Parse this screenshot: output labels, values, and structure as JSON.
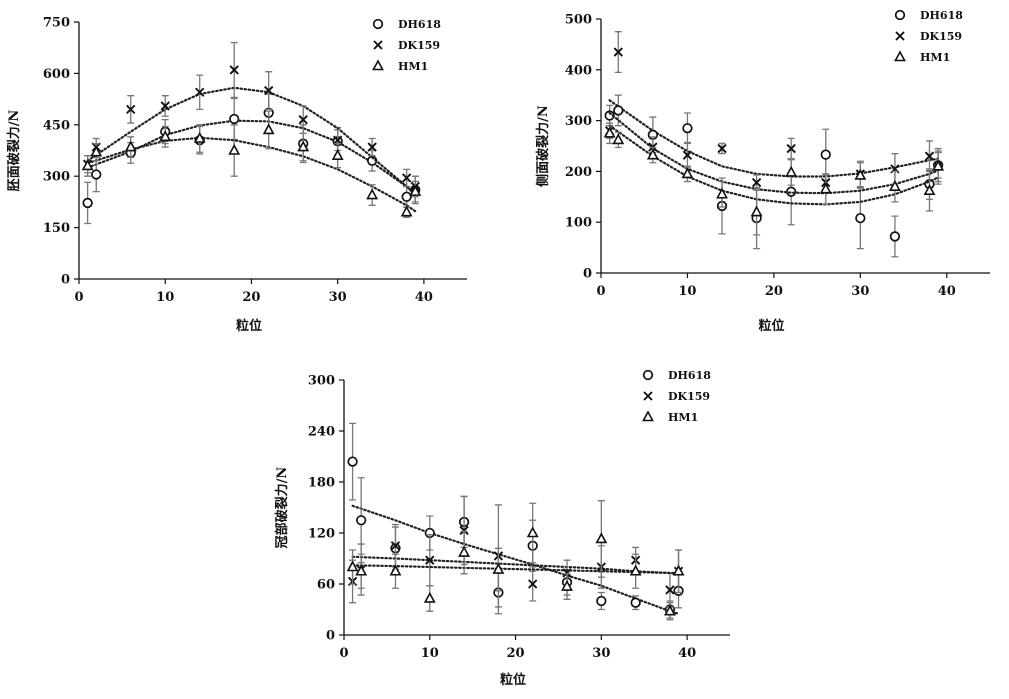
{
  "chart_data": [
    {
      "type": "scatter",
      "xlabel": "粒位",
      "ylabel": "胚面破裂力/N",
      "xlim": [
        0,
        45
      ],
      "ylim": [
        0,
        750
      ],
      "xticks": [
        0,
        10,
        20,
        30,
        40
      ],
      "yticks": [
        0,
        150,
        300,
        450,
        600,
        750
      ],
      "legend_position": "top-right",
      "series": [
        {
          "name": "DH618",
          "marker": "circle",
          "x": [
            1,
            2,
            6,
            10,
            14,
            18,
            22,
            26,
            30,
            34,
            38,
            39
          ],
          "y": [
            222,
            305,
            368,
            430,
            405,
            467,
            485,
            395,
            402,
            345,
            240,
            260
          ],
          "err": [
            60,
            50,
            30,
            35,
            40,
            60,
            55,
            55,
            40,
            30,
            30,
            40
          ],
          "trend": [
            [
              1,
              325
            ],
            [
              6,
              372
            ],
            [
              10,
              420
            ],
            [
              14,
              448
            ],
            [
              18,
              462
            ],
            [
              22,
              460
            ],
            [
              26,
              440
            ],
            [
              30,
              400
            ],
            [
              34,
              340
            ],
            [
              38,
              270
            ],
            [
              39,
              250
            ]
          ]
        },
        {
          "name": "DK159",
          "marker": "x",
          "x": [
            1,
            2,
            6,
            10,
            14,
            18,
            22,
            26,
            30,
            34,
            38,
            39
          ],
          "y": [
            335,
            385,
            495,
            505,
            545,
            610,
            550,
            465,
            405,
            385,
            295,
            270
          ],
          "err": [
            25,
            25,
            40,
            30,
            50,
            80,
            55,
            40,
            30,
            25,
            25,
            30
          ],
          "trend": [
            [
              1,
              345
            ],
            [
              6,
              430
            ],
            [
              10,
              495
            ],
            [
              14,
              540
            ],
            [
              18,
              558
            ],
            [
              22,
              545
            ],
            [
              26,
              505
            ],
            [
              30,
              440
            ],
            [
              34,
              355
            ],
            [
              38,
              270
            ],
            [
              39,
              245
            ]
          ]
        },
        {
          "name": "HM1",
          "marker": "triangle",
          "x": [
            1,
            2,
            6,
            10,
            14,
            18,
            22,
            26,
            30,
            34,
            38,
            39
          ],
          "y": [
            330,
            370,
            385,
            415,
            410,
            375,
            435,
            385,
            360,
            245,
            195,
            255
          ],
          "err": [
            30,
            25,
            30,
            30,
            40,
            75,
            55,
            40,
            35,
            30,
            15,
            30
          ],
          "trend": [
            [
              1,
              338
            ],
            [
              6,
              378
            ],
            [
              10,
              403
            ],
            [
              14,
              412
            ],
            [
              18,
              405
            ],
            [
              22,
              385
            ],
            [
              26,
              358
            ],
            [
              30,
              320
            ],
            [
              34,
              270
            ],
            [
              38,
              215
            ],
            [
              39,
              198
            ]
          ]
        }
      ]
    },
    {
      "type": "scatter",
      "xlabel": "粒位",
      "ylabel": "侧面破裂力/N",
      "xlim": [
        0,
        45
      ],
      "ylim": [
        0,
        500
      ],
      "xticks": [
        0,
        10,
        20,
        30,
        40
      ],
      "yticks": [
        0,
        100,
        200,
        300,
        400,
        500
      ],
      "legend_position": "top-right",
      "series": [
        {
          "name": "DH618",
          "marker": "circle",
          "x": [
            1,
            2,
            6,
            10,
            14,
            18,
            22,
            26,
            30,
            34,
            38,
            39
          ],
          "y": [
            310,
            320,
            272,
            285,
            132,
            108,
            160,
            233,
            108,
            72,
            175,
            212
          ],
          "err": [
            20,
            30,
            35,
            30,
            55,
            60,
            65,
            50,
            60,
            40,
            30,
            25
          ],
          "trend": [
            [
              1,
              340
            ],
            [
              6,
              280
            ],
            [
              10,
              240
            ],
            [
              14,
              210
            ],
            [
              18,
              195
            ],
            [
              22,
              190
            ],
            [
              26,
              190
            ],
            [
              30,
              196
            ],
            [
              34,
              208
            ],
            [
              38,
              222
            ],
            [
              39,
              225
            ]
          ]
        },
        {
          "name": "DK159",
          "marker": "x",
          "x": [
            1,
            2,
            6,
            10,
            14,
            18,
            22,
            26,
            30,
            34,
            38,
            39
          ],
          "y": [
            280,
            435,
            248,
            232,
            245,
            178,
            245,
            178,
            195,
            205,
            230,
            210
          ],
          "err": [
            15,
            40,
            20,
            25,
            10,
            15,
            20,
            15,
            25,
            30,
            30,
            35
          ],
          "trend": [
            [
              1,
              315
            ],
            [
              6,
              245
            ],
            [
              10,
              205
            ],
            [
              14,
              180
            ],
            [
              18,
              165
            ],
            [
              22,
              158
            ],
            [
              26,
              157
            ],
            [
              30,
              162
            ],
            [
              34,
              175
            ],
            [
              38,
              195
            ],
            [
              39,
              202
            ]
          ]
        },
        {
          "name": "HM1",
          "marker": "triangle",
          "x": [
            1,
            2,
            6,
            10,
            14,
            18,
            22,
            26,
            30,
            34,
            38,
            39
          ],
          "y": [
            275,
            262,
            232,
            195,
            155,
            120,
            198,
            165,
            192,
            170,
            162,
            210
          ],
          "err": [
            20,
            15,
            15,
            15,
            25,
            45,
            25,
            30,
            25,
            30,
            40,
            30
          ],
          "trend": [
            [
              1,
              290
            ],
            [
              6,
              230
            ],
            [
              10,
              190
            ],
            [
              14,
              162
            ],
            [
              18,
              145
            ],
            [
              22,
              137
            ],
            [
              26,
              135
            ],
            [
              30,
              140
            ],
            [
              34,
              155
            ],
            [
              38,
              180
            ],
            [
              39,
              188
            ]
          ]
        }
      ]
    },
    {
      "type": "scatter",
      "xlabel": "粒位",
      "ylabel": "冠部破裂力/N",
      "xlim": [
        0,
        45
      ],
      "ylim": [
        0,
        300
      ],
      "xticks": [
        0,
        10,
        20,
        30,
        40
      ],
      "yticks": [
        0,
        60,
        120,
        180,
        240,
        300
      ],
      "legend_position": "top-right",
      "series": [
        {
          "name": "DH618",
          "marker": "circle",
          "x": [
            1,
            2,
            6,
            10,
            14,
            18,
            22,
            26,
            30,
            34,
            38,
            39
          ],
          "y": [
            204,
            135,
            102,
            120,
            133,
            50,
            105,
            62,
            40,
            38,
            30,
            52
          ],
          "err": [
            45,
            50,
            25,
            20,
            30,
            25,
            30,
            15,
            10,
            8,
            10,
            20
          ],
          "trend": [
            [
              1,
              152
            ],
            [
              6,
              135
            ],
            [
              10,
              120
            ],
            [
              14,
              107
            ],
            [
              18,
              95
            ],
            [
              22,
              83
            ],
            [
              26,
              70
            ],
            [
              30,
              58
            ],
            [
              34,
              43
            ],
            [
              38,
              28
            ],
            [
              39,
              25
            ]
          ]
        },
        {
          "name": "DK159",
          "marker": "x",
          "x": [
            1,
            2,
            6,
            10,
            14,
            18,
            22,
            26,
            30,
            34,
            38,
            39
          ],
          "y": [
            63,
            77,
            105,
            88,
            123,
            93,
            60,
            73,
            80,
            88,
            53,
            75
          ],
          "err": [
            25,
            30,
            25,
            30,
            40,
            60,
            20,
            15,
            25,
            15,
            20,
            25
          ],
          "trend": [
            [
              1,
              92
            ],
            [
              6,
              90
            ],
            [
              10,
              88
            ],
            [
              14,
              86
            ],
            [
              18,
              84
            ],
            [
              22,
              82
            ],
            [
              26,
              80
            ],
            [
              30,
              78
            ],
            [
              34,
              75
            ],
            [
              38,
              73
            ],
            [
              39,
              72
            ]
          ]
        },
        {
          "name": "HM1",
          "marker": "triangle",
          "x": [
            1,
            2,
            6,
            10,
            14,
            18,
            22,
            26,
            30,
            34,
            38,
            39
          ],
          "y": [
            80,
            75,
            75,
            43,
            97,
            77,
            120,
            57,
            113,
            75,
            28,
            75
          ],
          "err": [
            20,
            20,
            20,
            15,
            25,
            25,
            35,
            15,
            45,
            20,
            10,
            25
          ],
          "trend": [
            [
              1,
              82
            ],
            [
              6,
              81
            ],
            [
              10,
              80
            ],
            [
              14,
              79
            ],
            [
              18,
              78
            ],
            [
              22,
              77
            ],
            [
              26,
              76
            ],
            [
              30,
              75
            ],
            [
              34,
              74
            ],
            [
              38,
              73
            ],
            [
              39,
              73
            ]
          ]
        }
      ]
    }
  ]
}
